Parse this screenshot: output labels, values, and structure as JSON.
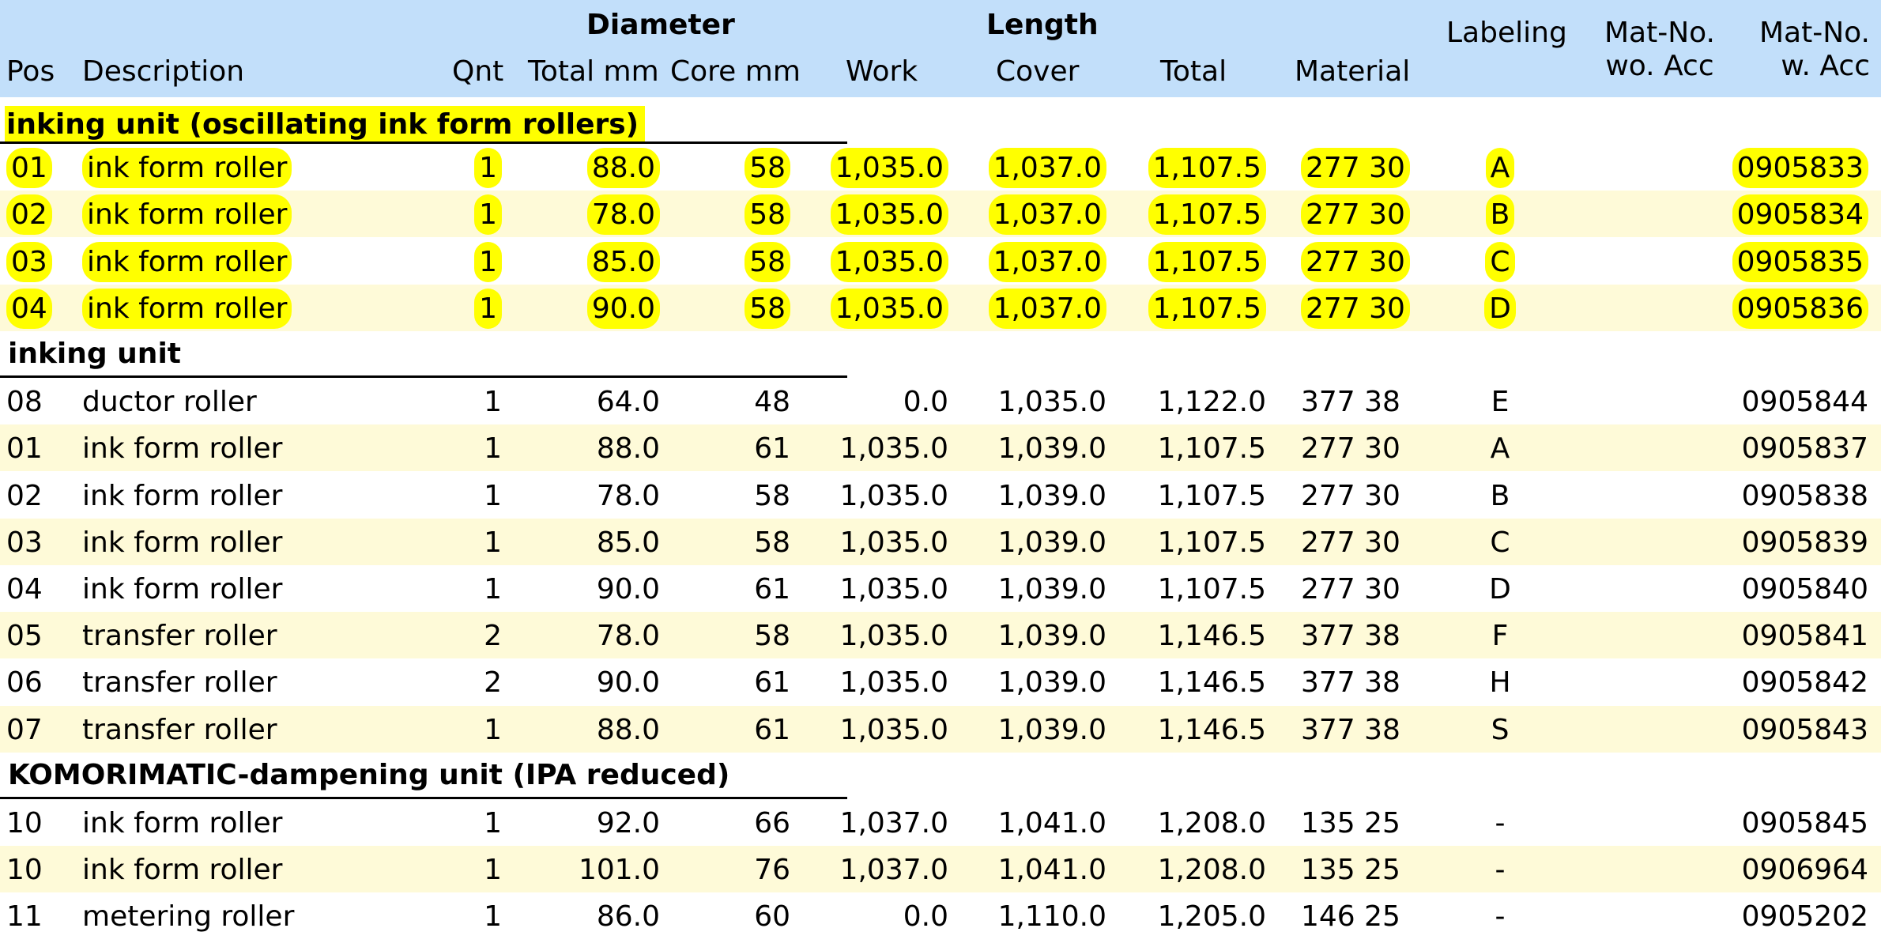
{
  "header": {
    "group_diameter": "Diameter",
    "group_length": "Length",
    "pos": "Pos",
    "description": "Description",
    "qnt": "Qnt",
    "total_mm": "Total mm",
    "core_mm": "Core mm",
    "work": "Work",
    "cover": "Cover",
    "total": "Total",
    "material": "Material",
    "labeling": "Labeling",
    "mat_wo_1": "Mat-No.",
    "mat_wo_2": "wo. Acc",
    "mat_w_1": "Mat-No.",
    "mat_w_2": "w. Acc"
  },
  "sections": [
    {
      "title": "inking unit (oscillating ink form rollers)",
      "highlighted": true,
      "rows": [
        [
          "01",
          "ink form roller",
          "1",
          "88.0",
          "58",
          "1,035.0",
          "1,037.0",
          "1,107.5",
          "277 30",
          "A",
          "",
          "0905833"
        ],
        [
          "02",
          "ink form roller",
          "1",
          "78.0",
          "58",
          "1,035.0",
          "1,037.0",
          "1,107.5",
          "277 30",
          "B",
          "",
          "0905834"
        ],
        [
          "03",
          "ink form roller",
          "1",
          "85.0",
          "58",
          "1,035.0",
          "1,037.0",
          "1,107.5",
          "277 30",
          "C",
          "",
          "0905835"
        ],
        [
          "04",
          "ink form roller",
          "1",
          "90.0",
          "58",
          "1,035.0",
          "1,037.0",
          "1,107.5",
          "277 30",
          "D",
          "",
          "0905836"
        ]
      ]
    },
    {
      "title": "inking unit",
      "highlighted": false,
      "rows": [
        [
          "08",
          "ductor roller",
          "1",
          "64.0",
          "48",
          "0.0",
          "1,035.0",
          "1,122.0",
          "377 38",
          "E",
          "",
          "0905844"
        ],
        [
          "01",
          "ink form roller",
          "1",
          "88.0",
          "61",
          "1,035.0",
          "1,039.0",
          "1,107.5",
          "277 30",
          "A",
          "",
          "0905837"
        ],
        [
          "02",
          "ink form roller",
          "1",
          "78.0",
          "58",
          "1,035.0",
          "1,039.0",
          "1,107.5",
          "277 30",
          "B",
          "",
          "0905838"
        ],
        [
          "03",
          "ink form roller",
          "1",
          "85.0",
          "58",
          "1,035.0",
          "1,039.0",
          "1,107.5",
          "277 30",
          "C",
          "",
          "0905839"
        ],
        [
          "04",
          "ink form roller",
          "1",
          "90.0",
          "61",
          "1,035.0",
          "1,039.0",
          "1,107.5",
          "277 30",
          "D",
          "",
          "0905840"
        ],
        [
          "05",
          "transfer roller",
          "2",
          "78.0",
          "58",
          "1,035.0",
          "1,039.0",
          "1,146.5",
          "377 38",
          "F",
          "",
          "0905841"
        ],
        [
          "06",
          "transfer roller",
          "2",
          "90.0",
          "61",
          "1,035.0",
          "1,039.0",
          "1,146.5",
          "377 38",
          "H",
          "",
          "0905842"
        ],
        [
          "07",
          "transfer roller",
          "1",
          "88.0",
          "61",
          "1,035.0",
          "1,039.0",
          "1,146.5",
          "377 38",
          "S",
          "",
          "0905843"
        ]
      ]
    },
    {
      "title": "KOMORIMATIC-dampening unit (IPA reduced)",
      "highlighted": false,
      "rows": [
        [
          "10",
          "ink form roller",
          "1",
          "92.0",
          "66",
          "1,037.0",
          "1,041.0",
          "1,208.0",
          "135 25",
          "-",
          "",
          "0905845"
        ],
        [
          "10",
          "ink form roller",
          "1",
          "101.0",
          "76",
          "1,037.0",
          "1,041.0",
          "1,208.0",
          "135 25",
          "-",
          "",
          "0906964"
        ],
        [
          "11",
          "metering roller",
          "1",
          "86.0",
          "60",
          "0.0",
          "1,110.0",
          "1,205.0",
          "146 25",
          "-",
          "",
          "0905202"
        ]
      ]
    }
  ]
}
